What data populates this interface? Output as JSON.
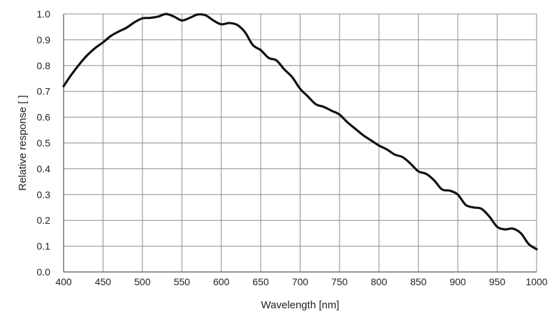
{
  "chart_data": {
    "type": "line",
    "title": "",
    "xlabel": "Wavelength [nm]",
    "ylabel": "Relative response [ ]",
    "xlim": [
      400,
      1000
    ],
    "ylim": [
      0,
      1.0
    ],
    "grid": true,
    "x_ticks": [
      "400",
      "450",
      "500",
      "550",
      "600",
      "650",
      "700",
      "750",
      "800",
      "850",
      "900",
      "950",
      "1000"
    ],
    "y_ticks": [
      "0.0",
      "0.1",
      "0.2",
      "0.3",
      "0.4",
      "0.5",
      "0.6",
      "0.7",
      "0.8",
      "0.9",
      "1.0"
    ],
    "colors": {
      "line": "#111111",
      "grid": "#8c8c8c"
    },
    "series": [
      {
        "x": [
          400,
          410,
          420,
          430,
          440,
          450,
          460,
          470,
          480,
          490,
          500,
          510,
          520,
          530,
          540,
          550,
          560,
          570,
          580,
          590,
          600,
          610,
          620,
          630,
          640,
          650,
          660,
          670,
          680,
          690,
          700,
          710,
          720,
          730,
          740,
          750,
          760,
          770,
          780,
          790,
          800,
          810,
          820,
          830,
          840,
          850,
          860,
          870,
          880,
          890,
          900,
          910,
          920,
          930,
          940,
          950,
          960,
          970,
          980,
          990,
          1000
        ],
        "y": [
          0.72,
          0.765,
          0.805,
          0.84,
          0.868,
          0.89,
          0.915,
          0.932,
          0.947,
          0.968,
          0.983,
          0.985,
          0.99,
          1.0,
          0.99,
          0.975,
          0.985,
          0.998,
          0.995,
          0.975,
          0.96,
          0.965,
          0.958,
          0.93,
          0.88,
          0.86,
          0.83,
          0.82,
          0.785,
          0.755,
          0.71,
          0.68,
          0.65,
          0.64,
          0.625,
          0.61,
          0.58,
          0.555,
          0.53,
          0.51,
          0.49,
          0.475,
          0.455,
          0.445,
          0.42,
          0.39,
          0.38,
          0.355,
          0.32,
          0.315,
          0.3,
          0.26,
          0.25,
          0.245,
          0.215,
          0.175,
          0.165,
          0.168,
          0.15,
          0.108,
          0.088
        ]
      }
    ]
  }
}
